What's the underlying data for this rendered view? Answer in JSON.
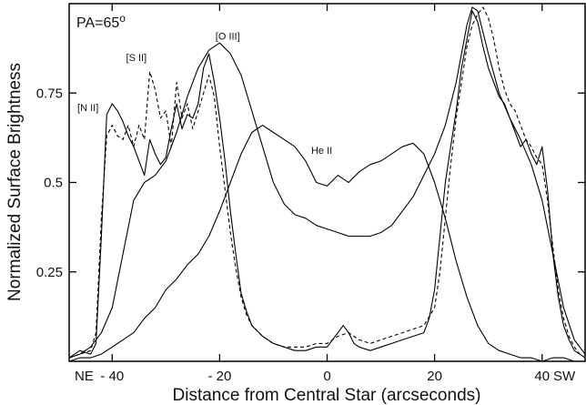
{
  "chart_data": {
    "type": "line",
    "title": "",
    "annotation": "PA=65",
    "annotation_superscript": "o",
    "xlabel": "Distance from Central Star (arcseconds)",
    "ylabel": "Normalized Surface Brightness",
    "xlim": [
      -48,
      48
    ],
    "ylim": [
      0,
      1.0
    ],
    "x_ticks": [
      -40,
      -20,
      0,
      20,
      40
    ],
    "x_tick_labels": [
      "- 40",
      "- 20",
      "0",
      "20",
      "40"
    ],
    "x_end_labels": {
      "left": "NE",
      "right": "SW"
    },
    "y_ticks": [
      0.25,
      0.5,
      0.75
    ],
    "y_tick_labels": [
      "0.25",
      "0.5",
      "0.75"
    ],
    "grid": false,
    "series": [
      {
        "name": "[N II]",
        "label_at": [
          -44.5,
          0.7
        ],
        "style": "solid",
        "x": [
          -48,
          -46,
          -44,
          -43,
          -42,
          -41,
          -40,
          -39,
          -38,
          -37,
          -36,
          -35,
          -34,
          -33,
          -32,
          -31,
          -30,
          -29,
          -28,
          -27,
          -26,
          -25,
          -24,
          -23,
          -22,
          -21,
          -20,
          -19,
          -18,
          -17,
          -16,
          -15,
          -14,
          -12,
          -10,
          -8,
          -6,
          -4,
          -2,
          0,
          1,
          2,
          3,
          4,
          5,
          6,
          8,
          10,
          12,
          14,
          16,
          18,
          19,
          20,
          21,
          22,
          23,
          24,
          25,
          26,
          27,
          28,
          29,
          30,
          31,
          32,
          33,
          34,
          35,
          36,
          37,
          38,
          39,
          40,
          41,
          42,
          43,
          44,
          45,
          46,
          47,
          48
        ],
        "y": [
          0.01,
          0.03,
          0.02,
          0.05,
          0.35,
          0.69,
          0.72,
          0.7,
          0.67,
          0.63,
          0.6,
          0.56,
          0.52,
          0.62,
          0.58,
          0.55,
          0.57,
          0.65,
          0.72,
          0.65,
          0.69,
          0.68,
          0.72,
          0.82,
          0.86,
          0.78,
          0.68,
          0.56,
          0.42,
          0.3,
          0.19,
          0.14,
          0.1,
          0.07,
          0.05,
          0.04,
          0.03,
          0.03,
          0.04,
          0.04,
          0.06,
          0.08,
          0.1,
          0.08,
          0.05,
          0.04,
          0.03,
          0.04,
          0.05,
          0.06,
          0.07,
          0.08,
          0.12,
          0.2,
          0.35,
          0.5,
          0.6,
          0.7,
          0.82,
          0.9,
          0.98,
          0.95,
          0.88,
          0.82,
          0.78,
          0.74,
          0.72,
          0.68,
          0.64,
          0.6,
          0.62,
          0.58,
          0.55,
          0.6,
          0.48,
          0.3,
          0.18,
          0.1,
          0.06,
          0.03,
          0.02,
          0.01
        ]
      },
      {
        "name": "[S II]",
        "label_at": [
          -35.5,
          0.84
        ],
        "style": "dashed",
        "x": [
          -48,
          -46,
          -44,
          -43,
          -42,
          -41,
          -40,
          -39,
          -38,
          -37,
          -36,
          -35,
          -34,
          -33,
          -32,
          -31,
          -30,
          -29,
          -28,
          -27,
          -26,
          -25,
          -24,
          -23,
          -22,
          -21,
          -20,
          -19,
          -18,
          -17,
          -16,
          -15,
          -14,
          -12,
          -10,
          -8,
          -6,
          -4,
          -2,
          0,
          2,
          4,
          5,
          6,
          8,
          10,
          12,
          14,
          16,
          18,
          20,
          21,
          22,
          23,
          24,
          25,
          26,
          27,
          28,
          29,
          30,
          31,
          32,
          33,
          34,
          35,
          36,
          37,
          38,
          39,
          40,
          41,
          42,
          43,
          44,
          45,
          46,
          47,
          48
        ],
        "y": [
          0.01,
          0.02,
          0.03,
          0.08,
          0.4,
          0.63,
          0.66,
          0.63,
          0.62,
          0.66,
          0.6,
          0.66,
          0.62,
          0.81,
          0.76,
          0.68,
          0.7,
          0.6,
          0.78,
          0.68,
          0.72,
          0.65,
          0.7,
          0.75,
          0.8,
          0.74,
          0.6,
          0.48,
          0.36,
          0.26,
          0.18,
          0.13,
          0.1,
          0.07,
          0.05,
          0.04,
          0.04,
          0.04,
          0.05,
          0.05,
          0.07,
          0.08,
          0.07,
          0.06,
          0.05,
          0.06,
          0.07,
          0.08,
          0.09,
          0.1,
          0.15,
          0.25,
          0.4,
          0.55,
          0.68,
          0.78,
          0.88,
          0.94,
          0.97,
          0.99,
          0.96,
          0.9,
          0.82,
          0.76,
          0.72,
          0.7,
          0.66,
          0.62,
          0.6,
          0.57,
          0.55,
          0.45,
          0.32,
          0.2,
          0.12,
          0.07,
          0.04,
          0.02,
          0.01
        ]
      },
      {
        "name": "[O III]",
        "label_at": [
          -18.5,
          0.9
        ],
        "style": "solid",
        "x": [
          -48,
          -46,
          -44,
          -42,
          -40,
          -38,
          -36,
          -34,
          -32,
          -30,
          -28,
          -26,
          -24,
          -22,
          -20,
          -18,
          -16,
          -14,
          -12,
          -10,
          -8,
          -6,
          -4,
          -2,
          0,
          2,
          4,
          6,
          8,
          10,
          12,
          14,
          16,
          18,
          20,
          22,
          24,
          25,
          26,
          27,
          28,
          30,
          32,
          34,
          36,
          38,
          40,
          42,
          44,
          46,
          48
        ],
        "y": [
          0.01,
          0.02,
          0.04,
          0.08,
          0.15,
          0.3,
          0.45,
          0.5,
          0.52,
          0.56,
          0.64,
          0.74,
          0.82,
          0.87,
          0.89,
          0.86,
          0.8,
          0.7,
          0.6,
          0.5,
          0.44,
          0.41,
          0.4,
          0.38,
          0.37,
          0.36,
          0.35,
          0.35,
          0.35,
          0.36,
          0.38,
          0.42,
          0.46,
          0.52,
          0.58,
          0.66,
          0.78,
          0.86,
          0.94,
          0.99,
          0.98,
          0.86,
          0.75,
          0.68,
          0.62,
          0.55,
          0.45,
          0.3,
          0.15,
          0.06,
          0.02
        ]
      },
      {
        "name": "He II",
        "label_at": [
          -1,
          0.58
        ],
        "style": "solid",
        "x": [
          -48,
          -46,
          -44,
          -42,
          -40,
          -38,
          -36,
          -34,
          -32,
          -30,
          -28,
          -26,
          -24,
          -22,
          -20,
          -18,
          -16,
          -14,
          -12,
          -10,
          -8,
          -6,
          -4,
          -2,
          0,
          2,
          4,
          6,
          8,
          10,
          12,
          14,
          16,
          18,
          20,
          22,
          24,
          26,
          28,
          30,
          32,
          34,
          36,
          38,
          40,
          42,
          44,
          46,
          48
        ],
        "y": [
          0.0,
          0.01,
          0.01,
          0.02,
          0.04,
          0.06,
          0.08,
          0.12,
          0.15,
          0.2,
          0.23,
          0.27,
          0.3,
          0.35,
          0.42,
          0.5,
          0.58,
          0.64,
          0.66,
          0.64,
          0.62,
          0.6,
          0.56,
          0.5,
          0.49,
          0.52,
          0.5,
          0.53,
          0.55,
          0.56,
          0.58,
          0.6,
          0.61,
          0.58,
          0.5,
          0.4,
          0.28,
          0.18,
          0.1,
          0.05,
          0.03,
          0.02,
          0.01,
          0.01,
          0.0,
          0.01,
          0.01,
          0.0,
          0.0
        ]
      }
    ]
  }
}
